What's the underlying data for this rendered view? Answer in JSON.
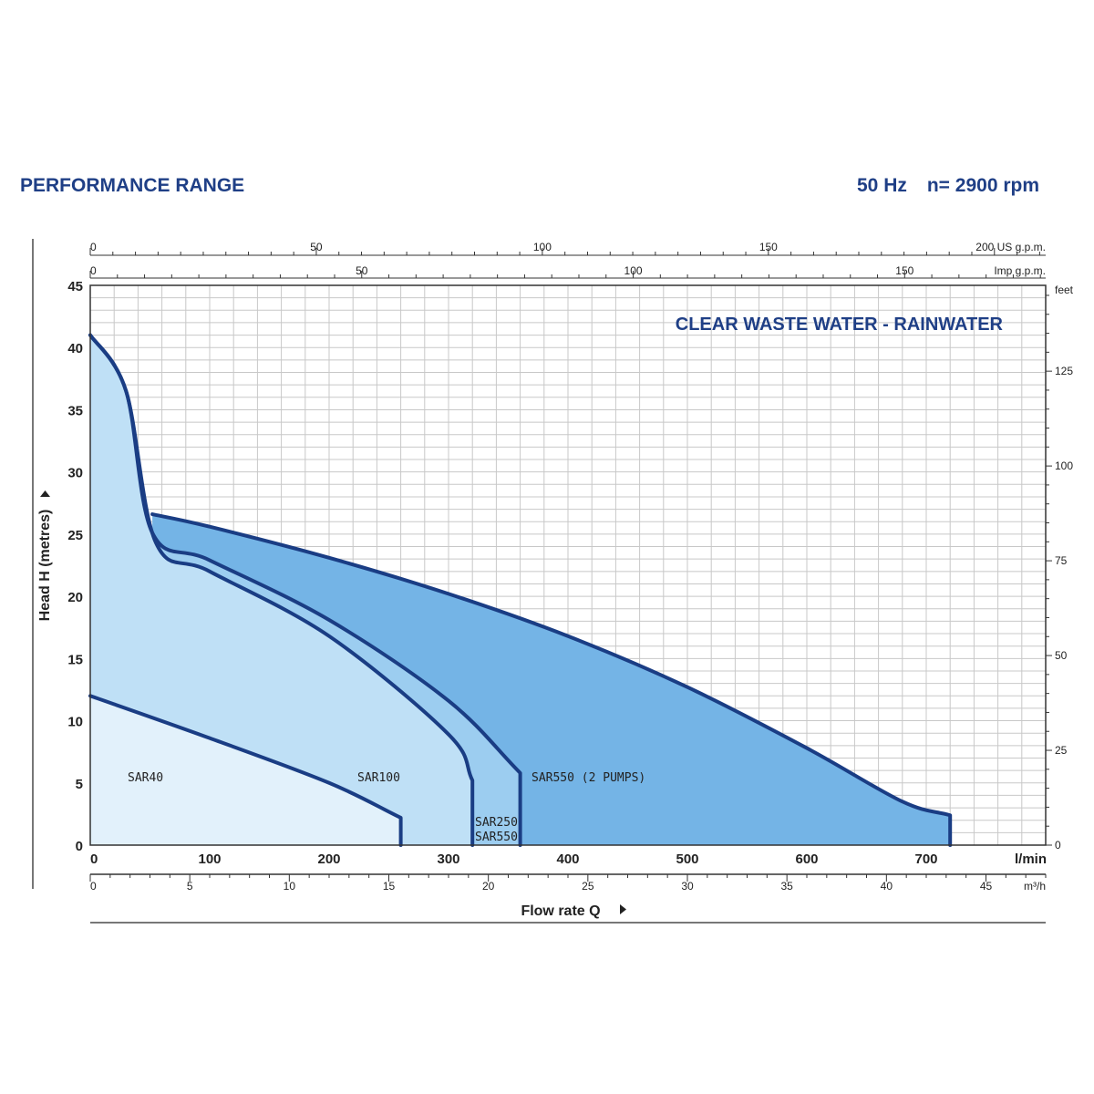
{
  "header": {
    "title": "PERFORMANCE RANGE",
    "frequency": "50 Hz",
    "speed": "n= 2900 rpm"
  },
  "colors": {
    "outline": "#1a3d84",
    "text_blue": "#1f3f86",
    "fill_sar40": "#e2f1fb",
    "fill_sar100": "#bfe0f6",
    "fill_sar250": "#9ccdf0",
    "fill_sar550": "#74b4e6",
    "grid": "#c8c8c8"
  },
  "chart_data": {
    "type": "area",
    "title": "CLEAR WASTE WATER - RAINWATER",
    "xlabel": "Flow rate Q",
    "ylabel": "Head H  (metres)",
    "xlim": [
      0,
      800
    ],
    "ylim": [
      0,
      45
    ],
    "x_unit": "l/min",
    "x_ticks": [
      0,
      100,
      200,
      300,
      400,
      500,
      600,
      700
    ],
    "y_ticks": [
      0,
      5,
      10,
      15,
      20,
      25,
      30,
      35,
      40,
      45
    ],
    "grid": true,
    "secondary_axes": {
      "m3h": {
        "unit": "m³/h",
        "ticks": [
          0,
          5,
          10,
          15,
          20,
          25,
          30,
          35,
          40,
          45
        ]
      },
      "us_gpm": {
        "unit": "US g.p.m.",
        "ticks": [
          0,
          50,
          100,
          150,
          200
        ]
      },
      "imp_gpm": {
        "unit": "Imp g.p.m.",
        "ticks": [
          0,
          50,
          100,
          150
        ]
      },
      "feet": {
        "unit": "feet",
        "ticks": [
          0,
          25,
          50,
          75,
          100,
          125
        ]
      }
    },
    "series": [
      {
        "name": "SAR550 (2 PUMPS)",
        "points": [
          [
            52,
            26.6
          ],
          [
            100,
            25.6
          ],
          [
            200,
            23.1
          ],
          [
            300,
            20.2
          ],
          [
            400,
            16.8
          ],
          [
            500,
            12.7
          ],
          [
            600,
            7.8
          ],
          [
            680,
            3.5
          ],
          [
            720,
            2.4
          ],
          [
            720,
            0
          ]
        ]
      },
      {
        "name": "SAR550",
        "points": [
          [
            0,
            41
          ],
          [
            30,
            36.5
          ],
          [
            52,
            25.1
          ],
          [
            100,
            22.9
          ],
          [
            200,
            18.1
          ],
          [
            300,
            11.6
          ],
          [
            360,
            5.8
          ],
          [
            360,
            0
          ]
        ]
      },
      {
        "name": "SAR250",
        "points": [
          [
            0,
            41
          ],
          [
            30,
            36.5
          ],
          [
            55,
            24.3
          ],
          [
            100,
            22.0
          ],
          [
            200,
            16.8
          ],
          [
            300,
            8.9
          ],
          [
            320,
            5.2
          ],
          [
            320,
            0
          ]
        ]
      },
      {
        "name": "SAR100",
        "points": [
          [
            0,
            41
          ],
          [
            30,
            36.5
          ],
          [
            55,
            24.3
          ],
          [
            100,
            22.0
          ],
          [
            200,
            16.8
          ],
          [
            300,
            8.9
          ],
          [
            320,
            5.2
          ],
          [
            320,
            0
          ]
        ]
      },
      {
        "name": "SAR40",
        "points": [
          [
            0,
            12
          ],
          [
            100,
            8.6
          ],
          [
            200,
            5.0
          ],
          [
            260,
            2.2
          ],
          [
            260,
            0
          ]
        ]
      }
    ]
  }
}
